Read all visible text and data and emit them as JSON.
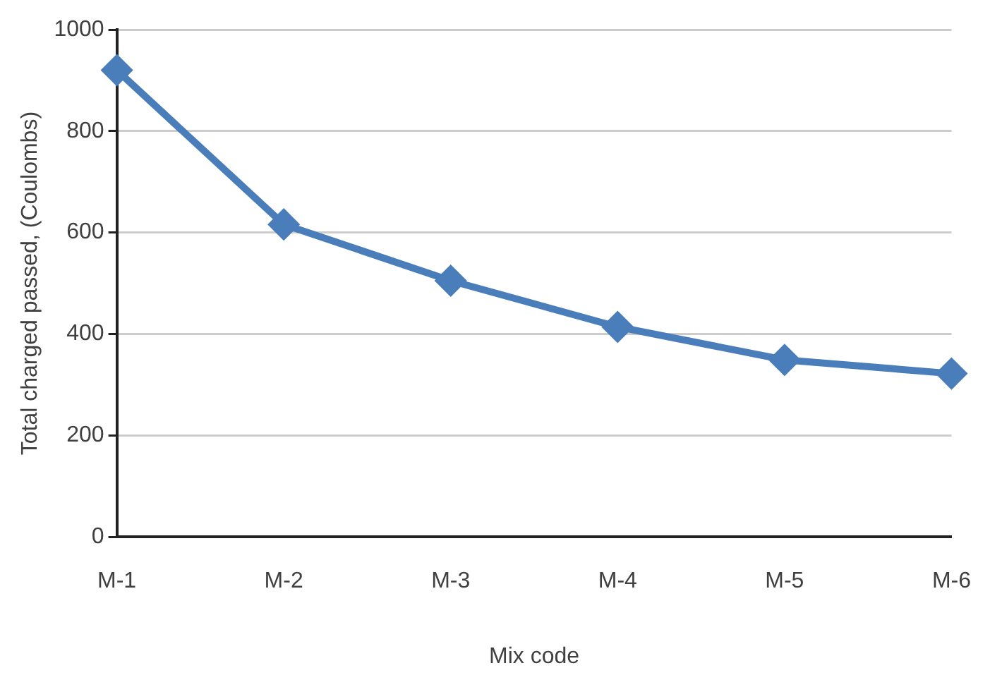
{
  "chart_data": {
    "type": "line",
    "xlabel": "Mix code",
    "ylabel": "Total charged passed, (Coulombs)",
    "categories": [
      "M-1",
      "M-2",
      "M-3",
      "M-4",
      "M-5",
      "M-6"
    ],
    "series": [
      {
        "color": "#4a7ebb",
        "values": [
          920,
          616,
          505,
          414,
          349,
          322
        ]
      }
    ],
    "ylim": [
      0,
      1000
    ],
    "yticks": [
      0,
      200,
      400,
      600,
      800,
      1000
    ],
    "grid": "y",
    "legend": false,
    "marker": "diamond",
    "line_style": "solid"
  }
}
